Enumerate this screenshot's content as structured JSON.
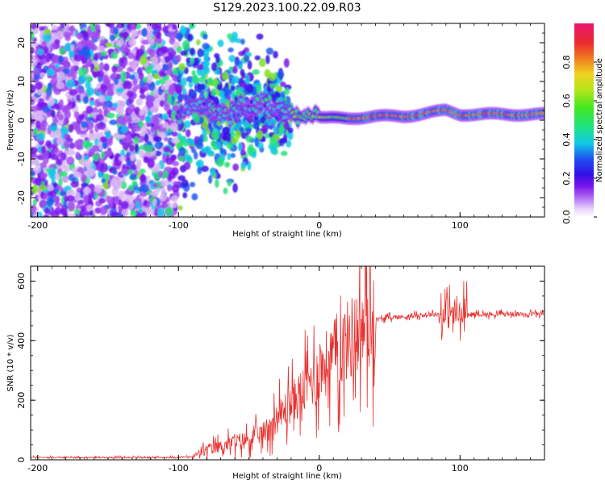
{
  "figure": {
    "title": "S129.2023.100.22.09.R03"
  },
  "colors": {
    "axis": "#000000",
    "snr_line": "#e8322f",
    "colormap": [
      "#f2e6fb",
      "#d9b6f5",
      "#a24cf0",
      "#7a14ec",
      "#3a10e6",
      "#1f5cf0",
      "#12c8e8",
      "#27e07a",
      "#7ee01c",
      "#e0e51a",
      "#f0a020",
      "#e83a30",
      "#e8186a"
    ]
  },
  "chart_data": [
    {
      "type": "heatmap",
      "xlabel": "Height of straight line (km)",
      "ylabel": "Frequency (Hz)",
      "xlim": [
        -205,
        160
      ],
      "ylim": [
        -25,
        25
      ],
      "xticks": [
        -200,
        -100,
        0,
        100
      ],
      "yticks": [
        -20,
        -10,
        0,
        10,
        20
      ],
      "colorbar": {
        "label": "Normalized spectral amplitude",
        "range": [
          0,
          1
        ],
        "ticks": [
          0.0,
          0.2,
          0.4,
          0.6,
          0.8
        ]
      },
      "ridge": {
        "description_points": [
          [
            -95,
            3
          ],
          [
            -85,
            4
          ],
          [
            -75,
            3
          ],
          [
            -65,
            2
          ],
          [
            -55,
            4
          ],
          [
            -45,
            4
          ],
          [
            -35,
            3
          ],
          [
            -25,
            2
          ],
          [
            -15,
            1
          ],
          [
            -5,
            1
          ],
          [
            5,
            0.5
          ],
          [
            20,
            0.5
          ],
          [
            40,
            1
          ],
          [
            60,
            1
          ],
          [
            80,
            2
          ],
          [
            90,
            2.5
          ],
          [
            100,
            1.5
          ],
          [
            120,
            1.5
          ],
          [
            140,
            1.5
          ],
          [
            160,
            1.5
          ]
        ]
      }
    },
    {
      "type": "line",
      "xlabel": "Height of straight line (km)",
      "ylabel": "SNR (10 * v/v)",
      "xlim": [
        -205,
        160
      ],
      "ylim": [
        0,
        650
      ],
      "xticks": [
        -200,
        -100,
        0,
        100
      ],
      "yticks": [
        0,
        200,
        400,
        600
      ],
      "series": [
        {
          "x": [
            -205,
            -180,
            -150,
            -120,
            -100,
            -90,
            -80,
            -70,
            -60,
            -50,
            -40,
            -30,
            -20,
            -10,
            0,
            10,
            20,
            30,
            40,
            50,
            60,
            70,
            80,
            90,
            95,
            100,
            105,
            110,
            120,
            130,
            140,
            150,
            160
          ],
          "y": [
            8,
            8,
            8,
            8,
            8,
            10,
            35,
            45,
            60,
            70,
            90,
            140,
            190,
            240,
            300,
            350,
            400,
            440,
            470,
            478,
            480,
            485,
            488,
            490,
            495,
            480,
            485,
            490,
            488,
            490,
            488,
            490,
            490
          ]
        }
      ]
    }
  ]
}
